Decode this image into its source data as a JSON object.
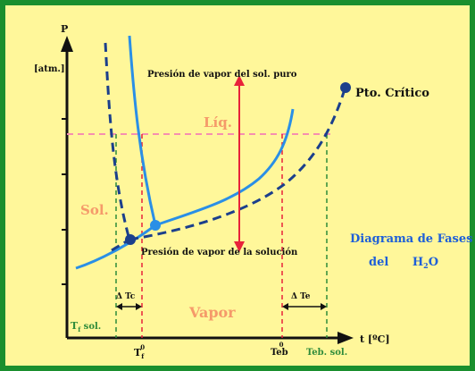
{
  "diagram": {
    "axis_p": "P",
    "axis_p_unit": "[atm.]",
    "axis_t": "t [ºC]",
    "label_pure_pressure": "Presión de vapor del sol. puro",
    "label_solution_pressure": "Presión de vapor de la solución",
    "label_critical": "Pto. Crítico",
    "region_liquid": "Líq.",
    "region_solid": "Sol.",
    "region_vapor": "Vapor",
    "title_line1": "Diagrama de Fases",
    "title_line2_prefix": "del",
    "title_line2_formula": "H",
    "title_line2_sub": "2",
    "title_line2_end": "O",
    "delta_tc_left": "Δ Tc",
    "delta_tc_right": "Δ Te",
    "tick_tf_sol": "T",
    "tick_tf_sol_sub": "f",
    "tick_tf_sol_end": " sol.",
    "tick_tf0": "T",
    "tick_tf0_sub": "f",
    "tick_tf0_sup": "0",
    "tick_teb0": "Teb",
    "tick_teb0_sup": "0",
    "tick_teb_sol": "Teb. sol."
  },
  "colors": {
    "frame": "#1a8f2e",
    "background": "#fff79a",
    "curve_blue": "#2a8fe6",
    "curve_dark": "#1b3f8c",
    "pink_dashed": "#f58fb0",
    "red": "#e8223a",
    "green_dashed": "#2e8b3a",
    "title_blue": "#1e5fd8",
    "region_orange": "#f59a6a"
  }
}
